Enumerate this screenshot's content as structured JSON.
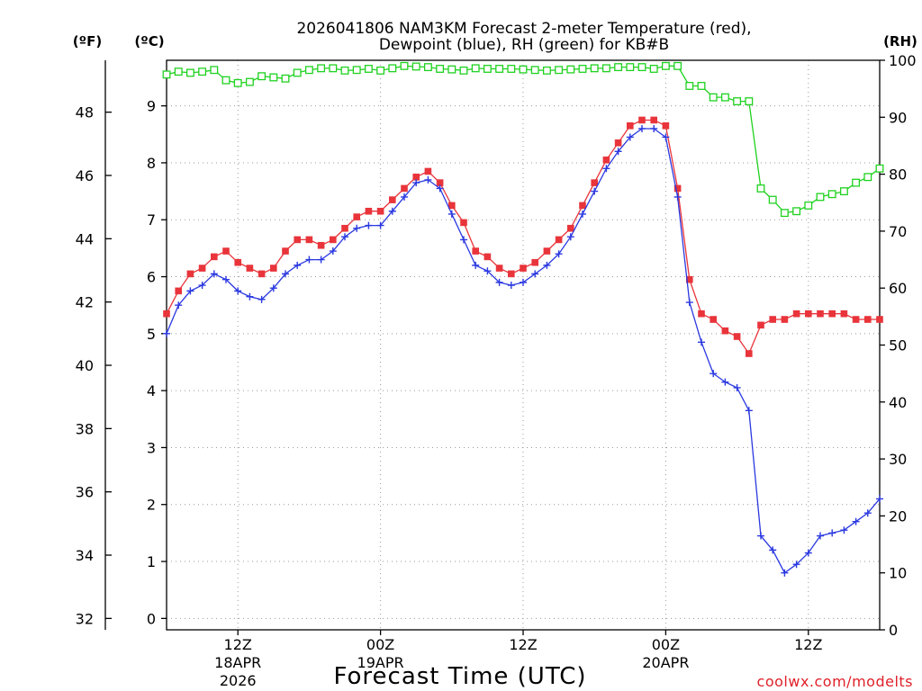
{
  "chart_data": {
    "type": "line",
    "title_line1": "2026041806 NAM3KM Forecast 2-meter Temperature (red),",
    "title_line2": "Dewpoint (blue), RH (green) for KB#B",
    "axis_unit_f": "(ºF)",
    "axis_unit_c": "(ºC)",
    "axis_unit_rh": "(RH)",
    "xlabel": "Forecast Time (UTC)",
    "credit": "coolwx.com/modelts",
    "x_range_hours": [
      0,
      60
    ],
    "celsius_range": [
      -0.2,
      9.8
    ],
    "fahrenheit_ticks": [
      "32",
      "34",
      "36",
      "38",
      "40",
      "42",
      "44",
      "46",
      "48"
    ],
    "celsius_ticks": [
      "0",
      "1",
      "2",
      "3",
      "4",
      "5",
      "6",
      "7",
      "8",
      "9"
    ],
    "rh_range": [
      0,
      100
    ],
    "rh_ticks": [
      "0",
      "10",
      "20",
      "30",
      "40",
      "50",
      "60",
      "70",
      "80",
      "90",
      "100"
    ],
    "x_ticks": [
      {
        "hour": 6,
        "label": "12Z",
        "date": "18APR",
        "year": "2026"
      },
      {
        "hour": 18,
        "label": "00Z",
        "date": "19APR",
        "year": ""
      },
      {
        "hour": 30,
        "label": "12Z",
        "date": "",
        "year": ""
      },
      {
        "hour": 42,
        "label": "00Z",
        "date": "20APR",
        "year": ""
      },
      {
        "hour": 54,
        "label": "12Z",
        "date": "",
        "year": ""
      }
    ],
    "series": [
      {
        "name": "2-meter Temperature (°C)",
        "color": "#e8343a",
        "marker": "filled-square",
        "x": [
          0,
          1,
          2,
          3,
          4,
          5,
          6,
          7,
          8,
          9,
          10,
          11,
          12,
          13,
          14,
          15,
          16,
          17,
          18,
          19,
          20,
          21,
          22,
          23,
          24,
          25,
          26,
          27,
          28,
          29,
          30,
          31,
          32,
          33,
          34,
          35,
          36,
          37,
          38,
          39,
          40,
          41,
          42,
          43,
          44,
          45,
          46,
          47,
          48,
          49,
          50,
          51,
          52,
          53,
          54,
          55,
          56,
          57,
          58,
          59,
          60
        ],
        "values": [
          5.35,
          5.75,
          6.05,
          6.15,
          6.35,
          6.45,
          6.25,
          6.15,
          6.05,
          6.15,
          6.45,
          6.65,
          6.65,
          6.55,
          6.65,
          6.85,
          7.05,
          7.15,
          7.15,
          7.35,
          7.55,
          7.75,
          7.85,
          7.65,
          7.25,
          6.95,
          6.45,
          6.35,
          6.15,
          6.05,
          6.15,
          6.25,
          6.45,
          6.65,
          6.85,
          7.25,
          7.65,
          8.05,
          8.35,
          8.65,
          8.75,
          8.75,
          8.65,
          7.55,
          5.95,
          5.35,
          5.25,
          5.05,
          4.95,
          4.65,
          5.15,
          5.25,
          5.25,
          5.35,
          5.35,
          5.35,
          5.35,
          5.35,
          5.25,
          5.25,
          5.25
        ]
      },
      {
        "name": "Dewpoint (°C)",
        "color": "#2a38e0",
        "marker": "plus",
        "x": [
          0,
          1,
          2,
          3,
          4,
          5,
          6,
          7,
          8,
          9,
          10,
          11,
          12,
          13,
          14,
          15,
          16,
          17,
          18,
          19,
          20,
          21,
          22,
          23,
          24,
          25,
          26,
          27,
          28,
          29,
          30,
          31,
          32,
          33,
          34,
          35,
          36,
          37,
          38,
          39,
          40,
          41,
          42,
          43,
          44,
          45,
          46,
          47,
          48,
          49,
          50,
          51,
          52,
          53,
          54,
          55,
          56,
          57,
          58,
          59,
          60
        ],
        "values": [
          5.0,
          5.5,
          5.75,
          5.85,
          6.05,
          5.95,
          5.75,
          5.65,
          5.6,
          5.8,
          6.05,
          6.2,
          6.3,
          6.3,
          6.45,
          6.7,
          6.85,
          6.9,
          6.9,
          7.15,
          7.4,
          7.65,
          7.7,
          7.55,
          7.1,
          6.65,
          6.2,
          6.1,
          5.9,
          5.85,
          5.9,
          6.05,
          6.2,
          6.4,
          6.7,
          7.1,
          7.5,
          7.9,
          8.2,
          8.45,
          8.6,
          8.6,
          8.45,
          7.4,
          5.55,
          4.85,
          4.3,
          4.15,
          4.05,
          3.65,
          1.45,
          1.2,
          0.8,
          0.95,
          1.15,
          1.45,
          1.5,
          1.55,
          1.7,
          1.85,
          2.1
        ]
      },
      {
        "name": "RH (%)",
        "color": "#1fd21f",
        "marker": "open-square",
        "axis": "rh",
        "x": [
          0,
          1,
          2,
          3,
          4,
          5,
          6,
          7,
          8,
          9,
          10,
          11,
          12,
          13,
          14,
          15,
          16,
          17,
          18,
          19,
          20,
          21,
          22,
          23,
          24,
          25,
          26,
          27,
          28,
          29,
          30,
          31,
          32,
          33,
          34,
          35,
          36,
          37,
          38,
          39,
          40,
          41,
          42,
          43,
          44,
          45,
          46,
          47,
          48,
          49,
          50,
          51,
          52,
          53,
          54,
          55,
          56,
          57,
          58,
          59,
          60
        ],
        "values": [
          97.5,
          98.0,
          97.8,
          98.0,
          98.3,
          96.5,
          96.0,
          96.2,
          97.2,
          97.0,
          96.8,
          97.8,
          98.3,
          98.6,
          98.6,
          98.2,
          98.3,
          98.5,
          98.2,
          98.6,
          99.0,
          98.9,
          98.8,
          98.5,
          98.4,
          98.2,
          98.6,
          98.5,
          98.5,
          98.5,
          98.4,
          98.3,
          98.2,
          98.3,
          98.4,
          98.5,
          98.6,
          98.6,
          98.8,
          98.8,
          98.8,
          98.5,
          99.0,
          99.0,
          95.5,
          95.5,
          93.5,
          93.5,
          92.8,
          92.8,
          77.5,
          75.5,
          73.2,
          73.5,
          74.5,
          76.0,
          76.5,
          77.0,
          78.5,
          79.5,
          81.0
        ]
      }
    ]
  }
}
